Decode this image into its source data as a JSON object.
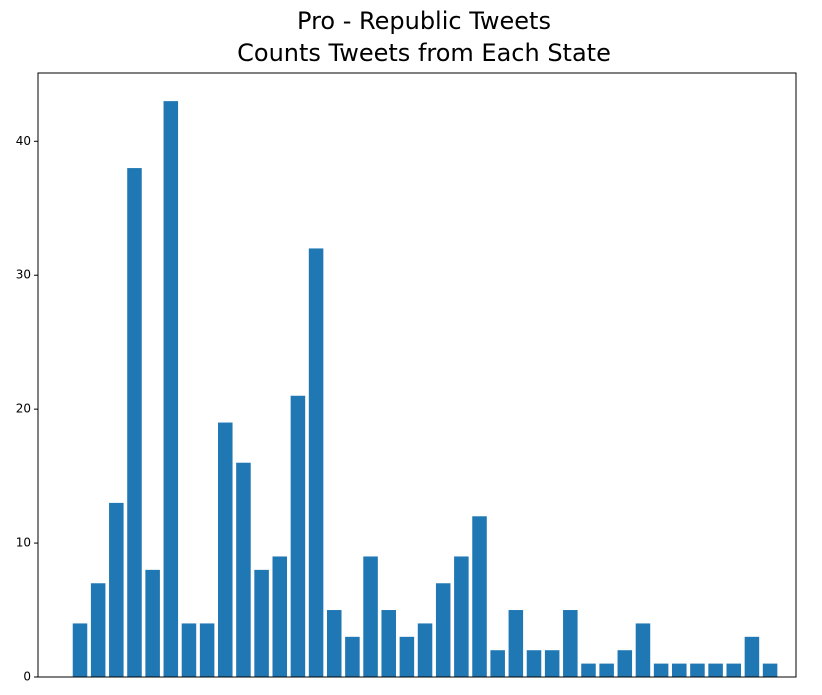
{
  "chart_data": {
    "type": "bar",
    "title": [
      "Pro - Republic Tweets",
      "Counts Tweets from Each State"
    ],
    "categories": [
      null,
      null,
      null,
      null,
      null,
      null,
      null,
      null,
      null,
      null,
      null,
      null,
      null,
      null,
      null,
      null,
      null,
      null,
      null,
      null,
      null,
      null,
      null,
      null,
      null,
      null,
      null,
      null,
      null,
      null,
      null,
      null,
      null,
      null,
      null,
      null,
      null,
      null,
      null
    ],
    "values": [
      4,
      7,
      13,
      38,
      8,
      43,
      4,
      4,
      19,
      16,
      8,
      9,
      21,
      32,
      5,
      3,
      9,
      5,
      3,
      4,
      7,
      9,
      12,
      2,
      5,
      2,
      2,
      5,
      1,
      1,
      2,
      4,
      1,
      1,
      1,
      1,
      1,
      3,
      1
    ],
    "color": "#1f77b4",
    "ylim": [
      0,
      45.1
    ],
    "yticks": [
      0,
      10,
      20,
      30,
      40
    ],
    "grid": false
  }
}
